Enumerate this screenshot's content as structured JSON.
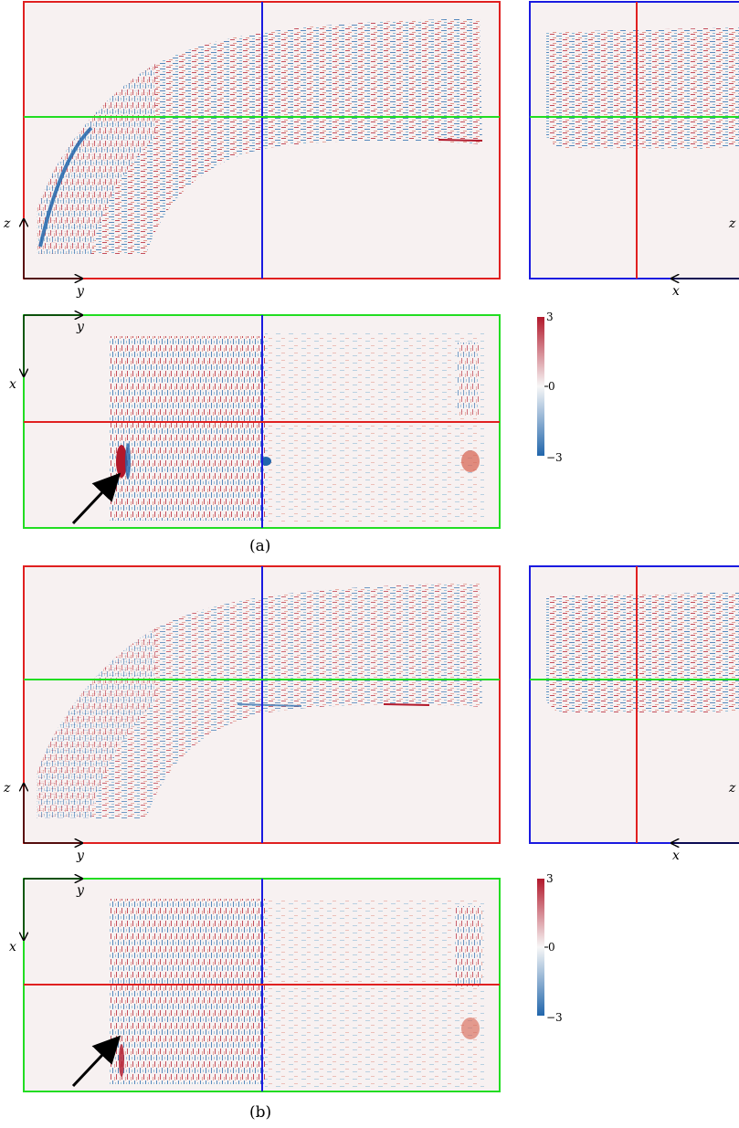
{
  "colors": {
    "frame_yz": "#e02020",
    "frame_xz": "#1a1ae0",
    "frame_xy": "#22dd22",
    "background": "#f7f1f1",
    "positive": "#b2182b",
    "negative": "#2166ac"
  },
  "panels": [
    {
      "caption": "(a)",
      "axes": {
        "yz_h": "y",
        "yz_v": "z",
        "xz_h": "x",
        "xz_v": "z",
        "xy_h": "y",
        "xy_v": "x"
      },
      "colorbar": {
        "max_label": "3",
        "mid_label": "0",
        "min_label": "−3",
        "range": [
          -3,
          3
        ]
      },
      "annotation": "arrow-pointing-to-feature"
    },
    {
      "caption": "(b)",
      "axes": {
        "yz_h": "y",
        "yz_v": "z",
        "xz_h": "x",
        "xz_v": "z",
        "xy_h": "y",
        "xy_v": "x"
      },
      "colorbar": {
        "max_label": "3",
        "mid_label": "0",
        "min_label": "−3",
        "range": [
          -3,
          3
        ]
      },
      "annotation": "arrow-pointing-to-feature"
    }
  ]
}
